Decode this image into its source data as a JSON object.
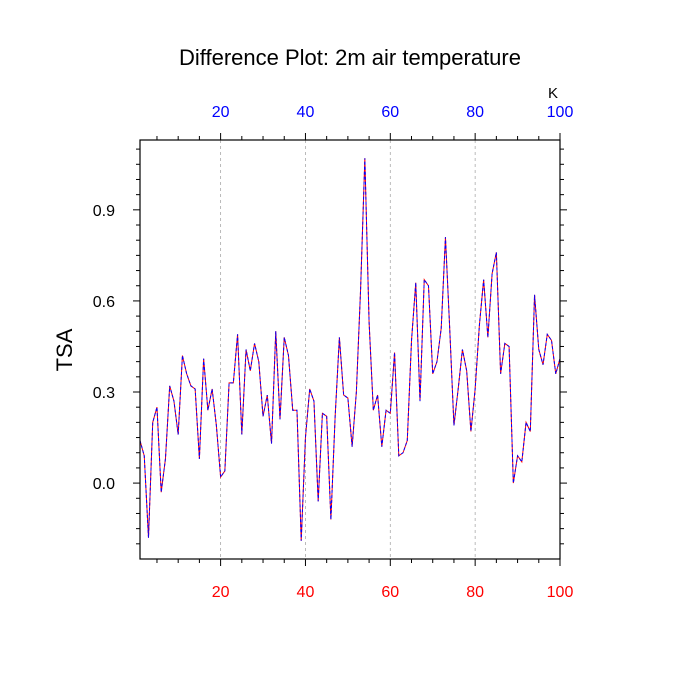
{
  "chart_data": {
    "type": "line",
    "title": "Difference Plot: 2m air temperature",
    "ylabel": "TSA",
    "xlabel": "",
    "top_axis_unit": "K",
    "xlim": [
      1,
      100
    ],
    "ylim": [
      -0.25,
      1.13
    ],
    "x_ticks": [
      20,
      40,
      60,
      80,
      100
    ],
    "y_ticks": [
      0.0,
      0.3,
      0.6,
      0.9
    ],
    "y_tick_labels": [
      "0.0",
      "0.3",
      "0.6",
      "0.9"
    ],
    "grid": "vertical dashed at x ticks",
    "colors": {
      "bottom_axis_labels": "#ff0000",
      "top_axis_labels": "#0000ff",
      "series_a": "#ff0000",
      "series_b": "#0000ff",
      "grid": "#aaaaaa"
    },
    "series": [
      {
        "values": [
          0.14,
          0.09,
          -0.18,
          0.2,
          0.25,
          -0.03,
          0.08,
          0.32,
          0.27,
          0.16,
          0.42,
          0.36,
          0.32,
          0.31,
          0.08,
          0.41,
          0.24,
          0.31,
          0.19,
          0.02,
          0.04,
          0.33,
          0.33,
          0.49,
          0.16,
          0.44,
          0.37,
          0.46,
          0.4,
          0.22,
          0.29,
          0.13,
          0.5,
          0.21,
          0.48,
          0.42,
          0.24,
          0.24,
          -0.19,
          0.15,
          0.31,
          0.27,
          -0.06,
          0.23,
          0.22,
          -0.12,
          0.22,
          0.48,
          0.29,
          0.28,
          0.12,
          0.3,
          0.64,
          1.07,
          0.53,
          0.24,
          0.29,
          0.12,
          0.24,
          0.23,
          0.43,
          0.09,
          0.1,
          0.14,
          0.47,
          0.66,
          0.27,
          0.67,
          0.65,
          0.36,
          0.4,
          0.51,
          0.81,
          0.51,
          0.19,
          0.31,
          0.44,
          0.37,
          0.17,
          0.31,
          0.52,
          0.67,
          0.48,
          0.69,
          0.76,
          0.36,
          0.46,
          0.45,
          0.0,
          0.09,
          0.07,
          0.2,
          0.17,
          0.62,
          0.44,
          0.39,
          0.49,
          0.47,
          0.36,
          0.41
        ]
      },
      {
        "values": [
          0.14,
          0.09,
          -0.18,
          0.2,
          0.25,
          -0.03,
          0.08,
          0.32,
          0.27,
          0.16,
          0.42,
          0.36,
          0.32,
          0.31,
          0.08,
          0.41,
          0.24,
          0.31,
          0.19,
          0.02,
          0.04,
          0.33,
          0.33,
          0.49,
          0.16,
          0.44,
          0.37,
          0.46,
          0.4,
          0.22,
          0.29,
          0.13,
          0.5,
          0.21,
          0.48,
          0.42,
          0.24,
          0.24,
          -0.19,
          0.15,
          0.31,
          0.27,
          -0.06,
          0.23,
          0.22,
          -0.12,
          0.22,
          0.48,
          0.29,
          0.28,
          0.12,
          0.3,
          0.64,
          1.07,
          0.53,
          0.24,
          0.29,
          0.12,
          0.24,
          0.23,
          0.43,
          0.09,
          0.1,
          0.14,
          0.47,
          0.66,
          0.27,
          0.67,
          0.65,
          0.36,
          0.4,
          0.51,
          0.81,
          0.51,
          0.19,
          0.31,
          0.44,
          0.37,
          0.17,
          0.31,
          0.52,
          0.67,
          0.48,
          0.69,
          0.76,
          0.36,
          0.46,
          0.45,
          0.0,
          0.09,
          0.07,
          0.2,
          0.17,
          0.62,
          0.44,
          0.39,
          0.49,
          0.47,
          0.36,
          0.41
        ]
      }
    ]
  }
}
